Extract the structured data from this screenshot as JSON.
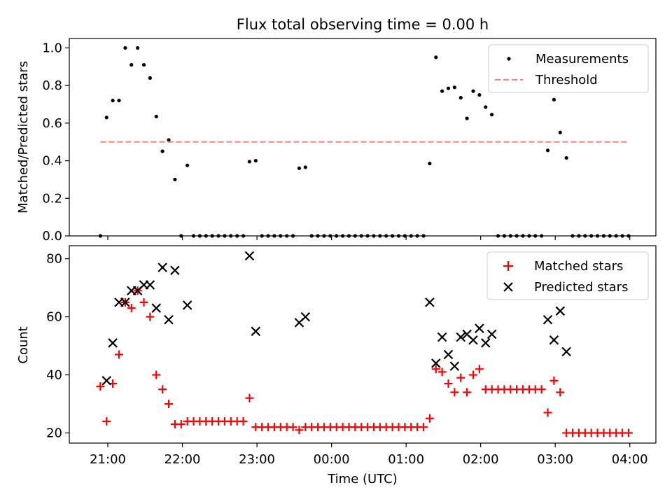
{
  "chart_data": [
    {
      "type": "scatter",
      "title": "Flux total observing time = 0.00 h",
      "xlabel": "",
      "ylabel": "Matched/Predicted stars",
      "xlim": [
        "20:29",
        "04:21"
      ],
      "ylim": [
        0.0,
        1.05
      ],
      "y_ticks": [
        "0.0",
        "0.2",
        "0.4",
        "0.6",
        "0.8",
        "1.0"
      ],
      "grid": false,
      "legend_position": "top-right",
      "series": [
        {
          "name": "Measurements",
          "color": "#000000",
          "marker": "dot",
          "points": [
            [
              "20:54",
              0.0
            ],
            [
              "20:59",
              0.63
            ],
            [
              "21:04",
              0.72
            ],
            [
              "21:09",
              0.72
            ],
            [
              "21:14",
              1.0
            ],
            [
              "21:19",
              0.91
            ],
            [
              "21:24",
              1.0
            ],
            [
              "21:29",
              0.91
            ],
            [
              "21:34",
              0.84
            ],
            [
              "21:39",
              0.635
            ],
            [
              "21:44",
              0.45
            ],
            [
              "21:49",
              0.51
            ],
            [
              "21:54",
              0.3
            ],
            [
              "21:59",
              0.0
            ],
            [
              "22:04",
              0.375
            ],
            [
              "22:09",
              0.0
            ],
            [
              "22:14",
              0.0
            ],
            [
              "22:19",
              0.0
            ],
            [
              "22:24",
              0.0
            ],
            [
              "22:29",
              0.0
            ],
            [
              "22:34",
              0.0
            ],
            [
              "22:39",
              0.0
            ],
            [
              "22:44",
              0.0
            ],
            [
              "22:49",
              0.0
            ],
            [
              "22:54",
              0.395
            ],
            [
              "22:59",
              0.4
            ],
            [
              "23:04",
              0.0
            ],
            [
              "23:09",
              0.0
            ],
            [
              "23:14",
              0.0
            ],
            [
              "23:19",
              0.0
            ],
            [
              "23:24",
              0.0
            ],
            [
              "23:29",
              0.0
            ],
            [
              "23:34",
              0.36
            ],
            [
              "23:39",
              0.365
            ],
            [
              "23:44",
              0.0
            ],
            [
              "23:49",
              0.0
            ],
            [
              "23:54",
              0.0
            ],
            [
              "23:59",
              0.0
            ],
            [
              "00:04",
              0.0
            ],
            [
              "00:09",
              0.0
            ],
            [
              "00:14",
              0.0
            ],
            [
              "00:19",
              0.0
            ],
            [
              "00:24",
              0.0
            ],
            [
              "00:29",
              0.0
            ],
            [
              "00:34",
              0.0
            ],
            [
              "00:39",
              0.0
            ],
            [
              "00:44",
              0.0
            ],
            [
              "00:49",
              0.0
            ],
            [
              "00:54",
              0.0
            ],
            [
              "00:59",
              0.0
            ],
            [
              "01:04",
              0.0
            ],
            [
              "01:09",
              0.0
            ],
            [
              "01:14",
              0.0
            ],
            [
              "01:19",
              0.385
            ],
            [
              "01:24",
              0.95
            ],
            [
              "01:29",
              0.77
            ],
            [
              "01:34",
              0.785
            ],
            [
              "01:39",
              0.79
            ],
            [
              "01:44",
              0.735
            ],
            [
              "01:49",
              0.625
            ],
            [
              "01:54",
              0.77
            ],
            [
              "01:59",
              0.75
            ],
            [
              "02:04",
              0.685
            ],
            [
              "02:09",
              0.645
            ],
            [
              "02:14",
              0.0
            ],
            [
              "02:19",
              0.0
            ],
            [
              "02:24",
              0.0
            ],
            [
              "02:29",
              0.0
            ],
            [
              "02:34",
              0.0
            ],
            [
              "02:39",
              0.0
            ],
            [
              "02:44",
              0.0
            ],
            [
              "02:49",
              0.0
            ],
            [
              "02:54",
              0.455
            ],
            [
              "02:59",
              0.725
            ],
            [
              "03:04",
              0.55
            ],
            [
              "03:09",
              0.415
            ],
            [
              "03:14",
              0.0
            ],
            [
              "03:19",
              0.0
            ],
            [
              "03:24",
              0.0
            ],
            [
              "03:29",
              0.0
            ],
            [
              "03:34",
              0.0
            ],
            [
              "03:39",
              0.0
            ],
            [
              "03:44",
              0.0
            ],
            [
              "03:49",
              0.0
            ],
            [
              "03:54",
              0.0
            ],
            [
              "03:59",
              0.0
            ]
          ]
        },
        {
          "name": "Threshold",
          "color": "#ff7f7f",
          "line_style": "dashed",
          "x": [
            "20:54",
            "03:59"
          ],
          "y": [
            0.5,
            0.5
          ]
        }
      ]
    },
    {
      "type": "scatter",
      "title": "",
      "xlabel": "Time (UTC)",
      "ylabel": "Count",
      "xlim": [
        "20:29",
        "04:21"
      ],
      "ylim": [
        16.5,
        84.5
      ],
      "y_ticks": [
        "20",
        "40",
        "60",
        "80"
      ],
      "x_ticks": [
        "21:00",
        "22:00",
        "23:00",
        "00:00",
        "01:00",
        "02:00",
        "03:00",
        "04:00"
      ],
      "grid": false,
      "legend_position": "top-right",
      "series": [
        {
          "name": "Matched stars",
          "color": "#ff0000",
          "marker": "plus",
          "points": [
            [
              "20:54",
              36
            ],
            [
              "20:59",
              24
            ],
            [
              "21:04",
              37
            ],
            [
              "21:09",
              47
            ],
            [
              "21:14",
              65
            ],
            [
              "21:19",
              63
            ],
            [
              "21:24",
              69
            ],
            [
              "21:29",
              65
            ],
            [
              "21:34",
              60
            ],
            [
              "21:39",
              40
            ],
            [
              "21:44",
              35
            ],
            [
              "21:49",
              30
            ],
            [
              "21:54",
              23
            ],
            [
              "21:59",
              23
            ],
            [
              "22:04",
              24
            ],
            [
              "22:09",
              24
            ],
            [
              "22:14",
              24
            ],
            [
              "22:19",
              24
            ],
            [
              "22:24",
              24
            ],
            [
              "22:29",
              24
            ],
            [
              "22:34",
              24
            ],
            [
              "22:39",
              24
            ],
            [
              "22:44",
              24
            ],
            [
              "22:49",
              24
            ],
            [
              "22:54",
              32
            ],
            [
              "22:59",
              22
            ],
            [
              "23:04",
              22
            ],
            [
              "23:09",
              22
            ],
            [
              "23:14",
              22
            ],
            [
              "23:19",
              22
            ],
            [
              "23:24",
              22
            ],
            [
              "23:29",
              22
            ],
            [
              "23:34",
              21
            ],
            [
              "23:39",
              22
            ],
            [
              "23:44",
              22
            ],
            [
              "23:49",
              22
            ],
            [
              "23:54",
              22
            ],
            [
              "23:59",
              22
            ],
            [
              "00:04",
              22
            ],
            [
              "00:09",
              22
            ],
            [
              "00:14",
              22
            ],
            [
              "00:19",
              22
            ],
            [
              "00:24",
              22
            ],
            [
              "00:29",
              22
            ],
            [
              "00:34",
              22
            ],
            [
              "00:39",
              22
            ],
            [
              "00:44",
              22
            ],
            [
              "00:49",
              22
            ],
            [
              "00:54",
              22
            ],
            [
              "00:59",
              22
            ],
            [
              "01:04",
              22
            ],
            [
              "01:09",
              22
            ],
            [
              "01:14",
              22
            ],
            [
              "01:19",
              25
            ],
            [
              "01:24",
              42
            ],
            [
              "01:29",
              41
            ],
            [
              "01:34",
              37
            ],
            [
              "01:39",
              34
            ],
            [
              "01:44",
              39
            ],
            [
              "01:49",
              34
            ],
            [
              "01:54",
              40
            ],
            [
              "01:59",
              42
            ],
            [
              "02:04",
              35
            ],
            [
              "02:09",
              35
            ],
            [
              "02:14",
              35
            ],
            [
              "02:19",
              35
            ],
            [
              "02:24",
              35
            ],
            [
              "02:29",
              35
            ],
            [
              "02:34",
              35
            ],
            [
              "02:39",
              35
            ],
            [
              "02:44",
              35
            ],
            [
              "02:49",
              35
            ],
            [
              "02:54",
              27
            ],
            [
              "02:59",
              38
            ],
            [
              "03:04",
              34
            ],
            [
              "03:09",
              20
            ],
            [
              "03:14",
              20
            ],
            [
              "03:19",
              20
            ],
            [
              "03:24",
              20
            ],
            [
              "03:29",
              20
            ],
            [
              "03:34",
              20
            ],
            [
              "03:39",
              20
            ],
            [
              "03:44",
              20
            ],
            [
              "03:49",
              20
            ],
            [
              "03:54",
              20
            ],
            [
              "03:59",
              20
            ]
          ]
        },
        {
          "name": "Predicted stars",
          "color": "#000000",
          "marker": "x",
          "points": [
            [
              "20:59",
              38
            ],
            [
              "21:04",
              51
            ],
            [
              "21:09",
              65
            ],
            [
              "21:14",
              65
            ],
            [
              "21:19",
              69
            ],
            [
              "21:24",
              69
            ],
            [
              "21:29",
              71
            ],
            [
              "21:34",
              71
            ],
            [
              "21:39",
              63
            ],
            [
              "21:44",
              77
            ],
            [
              "21:49",
              59
            ],
            [
              "21:54",
              76
            ],
            [
              "22:04",
              64
            ],
            [
              "22:54",
              81
            ],
            [
              "22:59",
              55
            ],
            [
              "23:34",
              58
            ],
            [
              "23:39",
              60
            ],
            [
              "01:19",
              65
            ],
            [
              "01:24",
              44
            ],
            [
              "01:29",
              53
            ],
            [
              "01:34",
              47
            ],
            [
              "01:39",
              43
            ],
            [
              "01:44",
              53
            ],
            [
              "01:49",
              54
            ],
            [
              "01:54",
              52
            ],
            [
              "01:59",
              56
            ],
            [
              "02:04",
              51
            ],
            [
              "02:09",
              54
            ],
            [
              "02:54",
              59
            ],
            [
              "02:59",
              52
            ],
            [
              "03:04",
              62
            ],
            [
              "03:09",
              48
            ]
          ]
        }
      ]
    }
  ]
}
